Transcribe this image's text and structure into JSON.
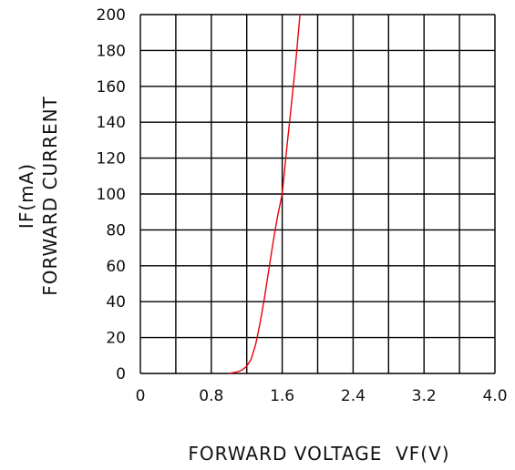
{
  "chart_data": {
    "type": "line",
    "title": "",
    "xlabel": "FORWARD VOLTAGE  VF(V)",
    "ylabel_line1": "IF(mA)",
    "ylabel_line2": "FORWARD CURRENT",
    "xlim": [
      0,
      4.0
    ],
    "ylim": [
      0,
      200
    ],
    "x_ticks": [
      0,
      0.4,
      0.8,
      1.2,
      1.6,
      2.0,
      2.4,
      2.8,
      3.2,
      3.6,
      4.0
    ],
    "x_tick_labels": [
      "0",
      "",
      "0.8",
      "",
      "1.6",
      "",
      "2.4",
      "",
      "3.2",
      "",
      "4.0"
    ],
    "y_ticks": [
      0,
      20,
      40,
      60,
      80,
      100,
      120,
      140,
      160,
      180,
      200
    ],
    "y_tick_labels": [
      "0",
      "20",
      "40",
      "60",
      "80",
      "100",
      "120",
      "140",
      "160",
      "180",
      "200"
    ],
    "grid": true,
    "series": [
      {
        "color": "#e8000b",
        "x": [
          1.0,
          1.1,
          1.15,
          1.2,
          1.25,
          1.3,
          1.35,
          1.4,
          1.45,
          1.5,
          1.55,
          1.6,
          1.65,
          1.7,
          1.75,
          1.8
        ],
        "y": [
          0,
          1,
          2,
          4,
          8,
          16,
          28,
          42,
          58,
          74,
          88,
          100,
          125,
          148,
          172,
          200
        ]
      }
    ]
  }
}
